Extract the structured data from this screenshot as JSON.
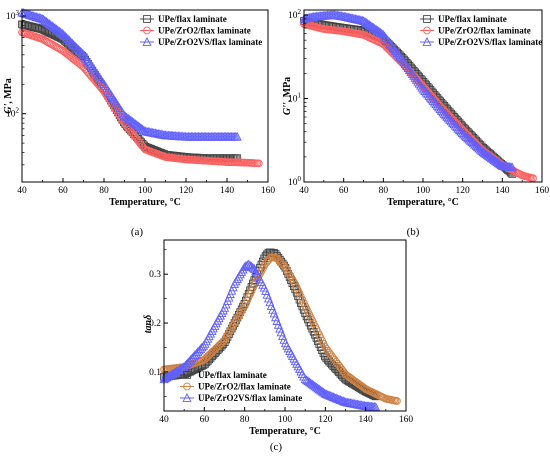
{
  "chart_data": [
    {
      "id": "a",
      "type": "scatter",
      "caption": "(a)",
      "xlabel": "Temperature, °C",
      "ylabel": "G', MPa",
      "xlim": [
        40,
        160
      ],
      "ylim": [
        20,
        1150
      ],
      "yscale": "log",
      "xticks": [
        "40",
        "60",
        "80",
        "100",
        "120",
        "140",
        "160"
      ],
      "yticks": [
        {
          "base": "10",
          "exp": "2",
          "value": 100
        },
        {
          "base": "10",
          "exp": "3",
          "value": 1000
        }
      ],
      "legend_position": "top-right",
      "series": [
        {
          "name": "UPe/flax laminate",
          "color": "#444444",
          "marker": "square",
          "x": [
            40,
            50,
            60,
            70,
            80,
            90,
            100,
            110,
            120,
            130,
            140,
            145
          ],
          "y": [
            820,
            730,
            580,
            380,
            180,
            80,
            46,
            38,
            36,
            35,
            35,
            35
          ]
        },
        {
          "name": "UPe/ZrO2/flax laminate",
          "color": "#ff6060",
          "marker": "circle",
          "x": [
            40,
            50,
            60,
            70,
            80,
            90,
            100,
            110,
            120,
            130,
            140,
            150,
            156
          ],
          "y": [
            680,
            580,
            440,
            300,
            170,
            80,
            43,
            36,
            34,
            33,
            32,
            31.5,
            31
          ]
        },
        {
          "name": "UPe/ZrO2VS/flax laminate",
          "color": "#6060ff",
          "marker": "triangle",
          "x": [
            40,
            50,
            60,
            70,
            80,
            90,
            100,
            110,
            120,
            130,
            140,
            145
          ],
          "y": [
            1080,
            930,
            650,
            400,
            200,
            95,
            66,
            60,
            58,
            58,
            58,
            58
          ]
        }
      ]
    },
    {
      "id": "b",
      "type": "scatter",
      "caption": "(b)",
      "xlabel": "Temperature, °C",
      "ylabel": "G'', MPa",
      "xlim": [
        40,
        160
      ],
      "ylim": [
        1,
        115
      ],
      "yscale": "log",
      "xticks": [
        "40",
        "60",
        "80",
        "100",
        "120",
        "140",
        "160"
      ],
      "yticks": [
        {
          "base": "10",
          "exp": "0",
          "value": 1
        },
        {
          "base": "10",
          "exp": "1",
          "value": 10
        },
        {
          "base": "10",
          "exp": "2",
          "value": 100
        }
      ],
      "legend_position": "top-right",
      "series": [
        {
          "name": "UPe/flax laminate",
          "color": "#444444",
          "marker": "square",
          "x": [
            40,
            50,
            60,
            70,
            80,
            90,
            100,
            110,
            120,
            130,
            140,
            145
          ],
          "y": [
            85,
            76,
            70,
            65,
            52,
            30,
            16,
            8.5,
            4.6,
            2.6,
            1.6,
            1.25
          ]
        },
        {
          "name": "UPe/ZrO2/flax laminate",
          "color": "#ff6060",
          "marker": "circle",
          "x": [
            40,
            50,
            60,
            70,
            80,
            90,
            100,
            110,
            120,
            130,
            140,
            150,
            156
          ],
          "y": [
            78,
            68,
            64,
            58,
            45,
            26,
            14,
            7.5,
            4.2,
            2.4,
            1.6,
            1.2,
            1.1
          ]
        },
        {
          "name": "UPe/ZrO2VS/flax laminate",
          "color": "#6060ff",
          "marker": "triangle",
          "x": [
            40,
            45,
            50,
            55,
            60,
            70,
            80,
            90,
            100,
            110,
            120,
            130,
            140,
            145
          ],
          "y": [
            90,
            95,
            98,
            100,
            96,
            85,
            58,
            28,
            13,
            6.8,
            3.8,
            2.3,
            1.55,
            1.5
          ]
        }
      ]
    },
    {
      "id": "c",
      "type": "scatter",
      "caption": "(c)",
      "xlabel": "Temperature, °C",
      "ylabel": "tanδ",
      "xlim": [
        40,
        160
      ],
      "ylim": [
        0.02,
        0.37
      ],
      "yscale": "linear",
      "xticks": [
        "40",
        "60",
        "80",
        "100",
        "120",
        "140",
        "160"
      ],
      "yticks": [
        {
          "label": "0.1",
          "value": 0.1
        },
        {
          "label": "0.2",
          "value": 0.2
        },
        {
          "label": "0.3",
          "value": 0.3
        }
      ],
      "legend_position": "bottom-left",
      "series": [
        {
          "name": "UPe/flax laminate",
          "color": "#444444",
          "marker": "square",
          "x": [
            40,
            50,
            60,
            70,
            80,
            85,
            90,
            92,
            95,
            100,
            105,
            110,
            120,
            130,
            140,
            145
          ],
          "y": [
            0.09,
            0.095,
            0.115,
            0.16,
            0.24,
            0.29,
            0.335,
            0.345,
            0.343,
            0.315,
            0.27,
            0.22,
            0.13,
            0.085,
            0.06,
            0.05
          ]
        },
        {
          "name": "UPe/ZrO2/flax laminate",
          "color": "#d08040",
          "marker": "circle",
          "x": [
            40,
            50,
            60,
            70,
            80,
            85,
            90,
            93,
            96,
            100,
            105,
            110,
            120,
            130,
            140,
            150,
            156
          ],
          "y": [
            0.105,
            0.11,
            0.125,
            0.165,
            0.235,
            0.28,
            0.32,
            0.335,
            0.333,
            0.315,
            0.28,
            0.235,
            0.15,
            0.095,
            0.065,
            0.045,
            0.04
          ]
        },
        {
          "name": "UPe/ZrO2VS/flax laminate",
          "color": "#6060ff",
          "marker": "triangle",
          "x": [
            40,
            50,
            60,
            70,
            75,
            80,
            82,
            85,
            90,
            95,
            100,
            110,
            120,
            130,
            140,
            145
          ],
          "y": [
            0.085,
            0.11,
            0.155,
            0.23,
            0.28,
            0.315,
            0.32,
            0.31,
            0.27,
            0.215,
            0.16,
            0.085,
            0.055,
            0.038,
            0.03,
            0.028
          ]
        }
      ]
    }
  ]
}
